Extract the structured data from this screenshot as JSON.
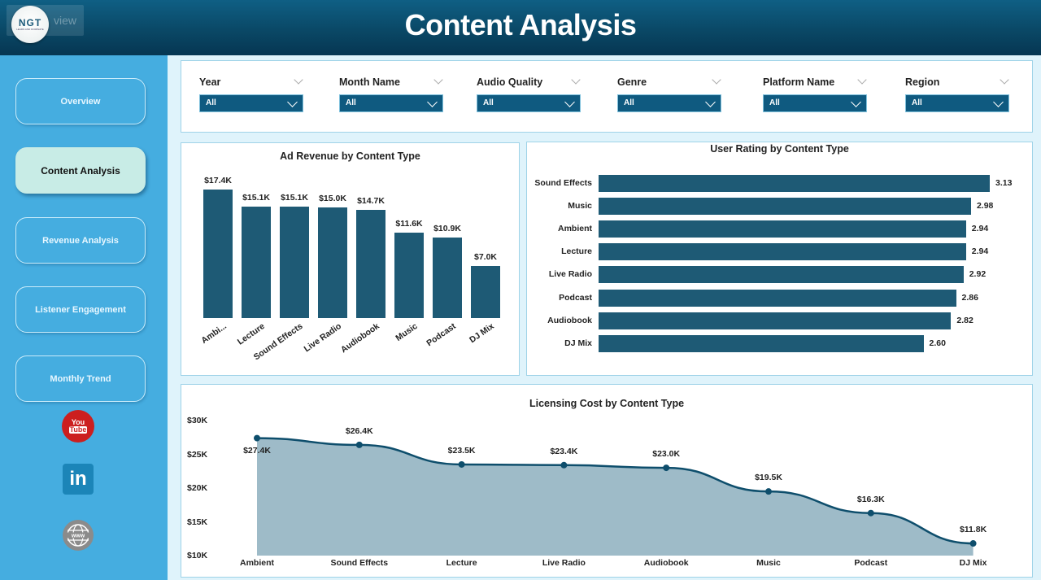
{
  "header": {
    "title": "Content Analysis",
    "logo_text": "NGT",
    "logo_tagline": "LEARN AND DOMINATE",
    "logo_overlay_text": "view"
  },
  "sidebar": {
    "items": [
      {
        "label": "Overview",
        "active": false
      },
      {
        "label": "Content Analysis",
        "active": true
      },
      {
        "label": "Revenue Analysis",
        "active": false
      },
      {
        "label": "Listener Engagement",
        "active": false
      },
      {
        "label": "Monthly Trend",
        "active": false
      }
    ],
    "social": [
      {
        "icon": "youtube-icon",
        "line1": "You",
        "line2": "Tube"
      },
      {
        "icon": "linkedin-icon",
        "text": "in"
      },
      {
        "icon": "globe-www-icon",
        "text": "www"
      }
    ]
  },
  "filters": [
    {
      "label": "Year",
      "value": "All"
    },
    {
      "label": "Month Name",
      "value": "All"
    },
    {
      "label": "Audio Quality",
      "value": "All"
    },
    {
      "label": "Genre",
      "value": "All"
    },
    {
      "label": "Platform Name",
      "value": "All"
    },
    {
      "label": "Region",
      "value": "All"
    }
  ],
  "colors": {
    "header_dark": "#063652",
    "sidebar": "#45ade0",
    "bar": "#1e5a75",
    "area_fill": "#9ebbc8",
    "line": "#0e4e6c",
    "active_nav": "#c8ece6"
  },
  "chart_data": [
    {
      "type": "bar",
      "title": "Ad Revenue by Content Type",
      "categories": [
        "Ambi...",
        "Lecture",
        "Sound Effects",
        "Live Radio",
        "Audiobook",
        "Music",
        "Podcast",
        "DJ Mix"
      ],
      "values": [
        17400,
        15100,
        15100,
        15000,
        14700,
        11600,
        10900,
        7000
      ],
      "labels": [
        "$17.4K",
        "$15.1K",
        "$15.1K",
        "$15.0K",
        "$14.7K",
        "$11.6K",
        "$10.9K",
        "$7.0K"
      ],
      "xlabel": "",
      "ylabel": "",
      "grid": false
    },
    {
      "type": "bar",
      "orientation": "horizontal",
      "title": "User Rating by Content Type",
      "categories": [
        "Sound Effects",
        "Music",
        "Ambient",
        "Lecture",
        "Live Radio",
        "Podcast",
        "Audiobook",
        "DJ Mix"
      ],
      "values": [
        3.13,
        2.98,
        2.94,
        2.94,
        2.92,
        2.86,
        2.82,
        2.6
      ],
      "labels": [
        "3.13",
        "2.98",
        "2.94",
        "2.94",
        "2.92",
        "2.86",
        "2.82",
        "2.60"
      ],
      "xlabel": "",
      "ylabel": "",
      "grid": false
    },
    {
      "type": "area",
      "title": "Licensing Cost by Content Type",
      "categories": [
        "Ambient",
        "Sound Effects",
        "Lecture",
        "Live Radio",
        "Audiobook",
        "Music",
        "Podcast",
        "DJ Mix"
      ],
      "values": [
        27400,
        26400,
        23500,
        23400,
        23000,
        19500,
        16300,
        11800
      ],
      "labels": [
        "$27.4K",
        "$26.4K",
        "$23.5K",
        "$23.4K",
        "$23.0K",
        "$19.5K",
        "$16.3K",
        "$11.8K"
      ],
      "yticks": [
        "$30K",
        "$25K",
        "$20K",
        "$15K",
        "$10K"
      ],
      "ylim": [
        10000,
        30000
      ],
      "xlabel": "",
      "ylabel": "",
      "grid": false
    }
  ]
}
